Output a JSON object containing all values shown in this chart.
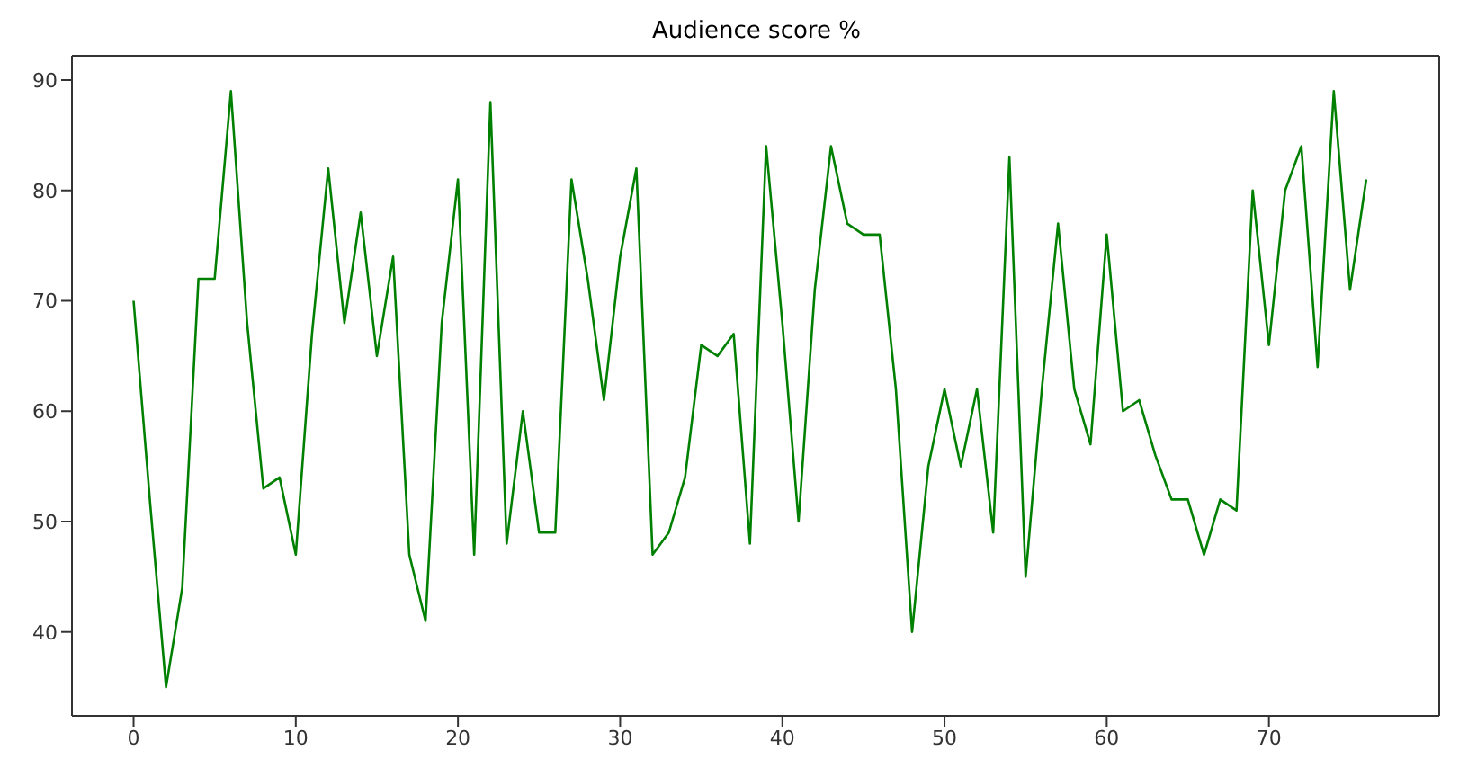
{
  "chart_data": {
    "type": "line",
    "title": "Audience score %",
    "x": [
      0,
      1,
      2,
      3,
      4,
      5,
      6,
      7,
      8,
      9,
      10,
      11,
      12,
      13,
      14,
      15,
      16,
      17,
      18,
      19,
      20,
      21,
      22,
      23,
      24,
      25,
      26,
      27,
      28,
      29,
      30,
      31,
      32,
      33,
      34,
      35,
      36,
      37,
      38,
      39,
      40,
      41,
      42,
      43,
      44,
      45,
      46,
      47,
      48,
      49,
      50,
      51,
      52,
      53,
      54,
      55,
      56,
      57,
      58,
      59,
      60,
      61,
      62,
      63,
      64,
      65,
      66,
      67,
      68,
      69,
      70,
      71,
      72,
      73,
      74,
      75,
      76
    ],
    "series": [
      {
        "color": "#008000",
        "values": [
          70,
          52,
          35,
          44,
          72,
          72,
          89,
          68,
          53,
          54,
          47,
          67,
          82,
          68,
          78,
          65,
          74,
          47,
          41,
          68,
          81,
          47,
          88,
          48,
          60,
          49,
          49,
          81,
          72,
          61,
          74,
          82,
          47,
          49,
          54,
          66,
          65,
          67,
          48,
          84,
          68,
          50,
          71,
          84,
          77,
          76,
          76,
          62,
          40,
          55,
          62,
          55,
          62,
          49,
          83,
          45,
          62,
          77,
          62,
          57,
          76,
          60,
          61,
          56,
          52,
          52,
          47,
          52,
          51,
          80,
          66,
          80,
          84,
          64,
          89,
          71,
          81
        ]
      }
    ],
    "xlim": [
      -3.8,
      80.5
    ],
    "xticks": [
      0,
      10,
      20,
      30,
      40,
      50,
      60,
      70
    ],
    "ylim": [
      32.4,
      92.2
    ],
    "yticks": [
      40,
      50,
      60,
      70,
      80,
      90
    ],
    "grid": false,
    "legend": false,
    "marker": "none",
    "line_style": "solid"
  }
}
